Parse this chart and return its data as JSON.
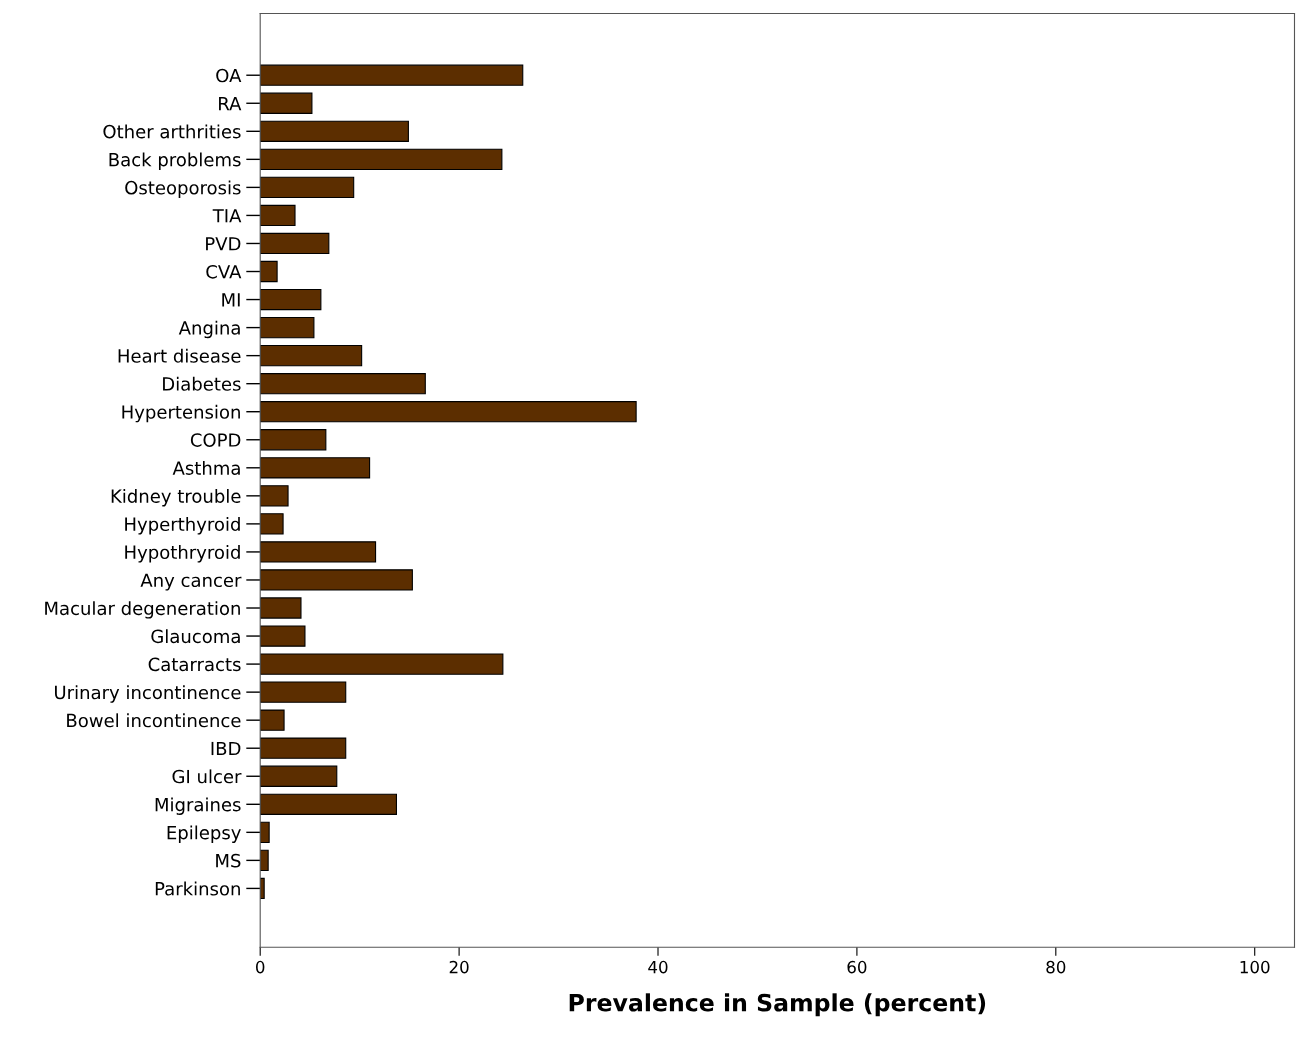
{
  "chart_data": {
    "type": "bar",
    "orientation": "horizontal",
    "xlabel": "Prevalence in Sample (percent)",
    "categories": [
      "OA",
      "RA",
      "Other arthrities",
      "Back problems",
      "Osteoporosis",
      "TIA",
      "PVD",
      "CVA",
      "MI",
      "Angina",
      "Heart disease",
      "Diabetes",
      "Hypertension",
      "COPD",
      "Asthma",
      "Kidney trouble",
      "Hyperthyroid",
      "Hypothryroid",
      "Any cancer",
      "Macular degeneration",
      "Glaucoma",
      "Catarracts",
      "Urinary incontinence",
      "Bowel incontinence",
      "IBD",
      "GI ulcer",
      "Migraines",
      "Epilepsy",
      "MS",
      "Parkinson"
    ],
    "values": [
      26.4,
      5.2,
      14.9,
      24.3,
      9.4,
      3.5,
      6.9,
      1.7,
      6.1,
      5.4,
      10.2,
      16.6,
      37.8,
      6.6,
      11.0,
      2.8,
      2.3,
      11.6,
      15.3,
      4.1,
      4.5,
      24.4,
      8.6,
      2.4,
      8.6,
      7.7,
      13.7,
      0.9,
      0.8,
      0.4
    ],
    "color": "#5c2e00",
    "xlim": [
      0,
      104
    ],
    "xticks": [
      0,
      20,
      40,
      60,
      80,
      100
    ],
    "grid": false
  }
}
